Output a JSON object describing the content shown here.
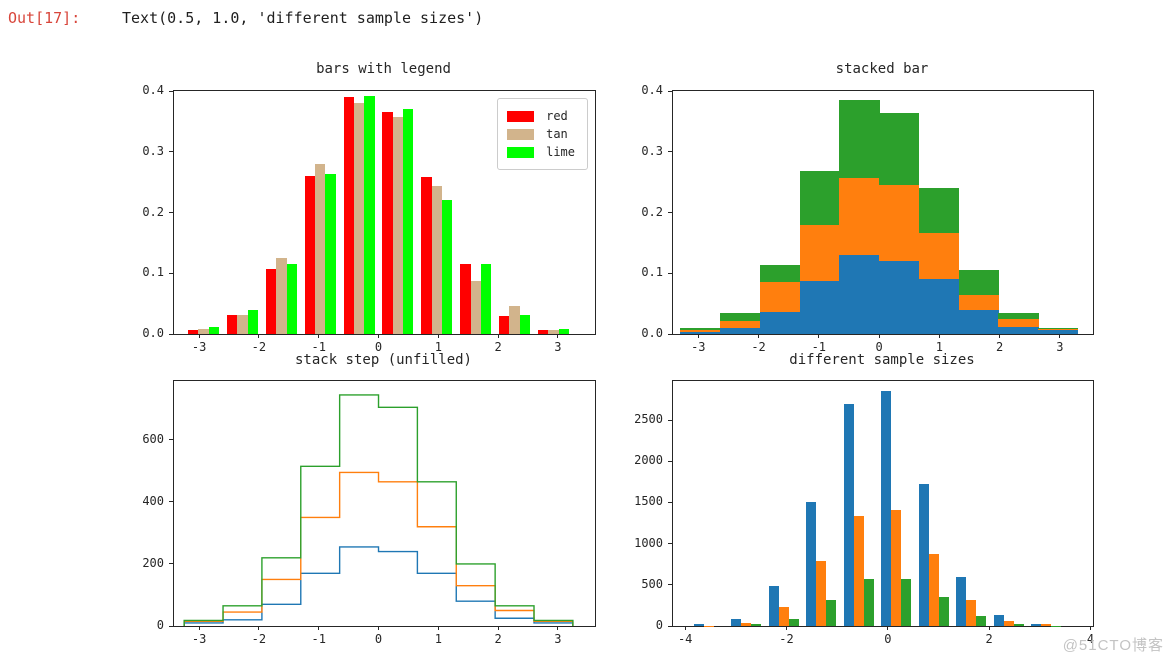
{
  "notebook": {
    "out_prompt": "Out[17]:",
    "out_value": "Text(0.5, 1.0, 'different sample sizes')"
  },
  "watermark": "@51CTO博客",
  "style": {
    "spine_color": "#262626",
    "tick_color": "#262626",
    "prompt_color": "#d8453a"
  },
  "chart_data": [
    {
      "type": "bar",
      "mode": "grouped",
      "title": "bars with legend",
      "legend": true,
      "legend_position": "upper right",
      "grid": false,
      "xlim": [
        -3.42,
        3.62
      ],
      "ylim": [
        0,
        0.4
      ],
      "bin_start": -3.25,
      "bin_width": 0.65,
      "group_fill": 0.8,
      "xticks": [
        {
          "value": -3,
          "label": "-3"
        },
        {
          "value": -2,
          "label": "-2"
        },
        {
          "value": -1,
          "label": "-1"
        },
        {
          "value": 0,
          "label": "0"
        },
        {
          "value": 1,
          "label": "1"
        },
        {
          "value": 2,
          "label": "2"
        },
        {
          "value": 3,
          "label": "3"
        }
      ],
      "yticks": [
        {
          "value": 0,
          "label": "0.0"
        },
        {
          "value": 0.1,
          "label": "0.1"
        },
        {
          "value": 0.2,
          "label": "0.2"
        },
        {
          "value": 0.3,
          "label": "0.3"
        },
        {
          "value": 0.4,
          "label": "0.4"
        }
      ],
      "series": [
        {
          "name": "red",
          "color": "#ff0000",
          "values": [
            0.007,
            0.032,
            0.107,
            0.26,
            0.39,
            0.365,
            0.258,
            0.115,
            0.03,
            0.007
          ]
        },
        {
          "name": "tan",
          "color": "#d2b48c",
          "values": [
            0.009,
            0.032,
            0.125,
            0.28,
            0.38,
            0.357,
            0.243,
            0.087,
            0.046,
            0.006
          ]
        },
        {
          "name": "lime",
          "color": "#00ff00",
          "values": [
            0.012,
            0.04,
            0.115,
            0.263,
            0.391,
            0.37,
            0.22,
            0.115,
            0.032,
            0.009
          ]
        }
      ]
    },
    {
      "type": "bar",
      "mode": "stacked",
      "title": "stacked bar",
      "legend": false,
      "grid": false,
      "xlim": [
        -3.42,
        3.55
      ],
      "ylim": [
        0,
        0.4
      ],
      "bin_start": -3.3,
      "bin_width": 0.66,
      "xticks": [
        {
          "value": -3,
          "label": "-3"
        },
        {
          "value": -2,
          "label": "-2"
        },
        {
          "value": -1,
          "label": "-1"
        },
        {
          "value": 0,
          "label": "0"
        },
        {
          "value": 1,
          "label": "1"
        },
        {
          "value": 2,
          "label": "2"
        },
        {
          "value": 3,
          "label": "3"
        }
      ],
      "yticks": [
        {
          "value": 0,
          "label": "0.0"
        },
        {
          "value": 0.1,
          "label": "0.1"
        },
        {
          "value": 0.2,
          "label": "0.2"
        },
        {
          "value": 0.3,
          "label": "0.3"
        },
        {
          "value": 0.4,
          "label": "0.4"
        }
      ],
      "series": [
        {
          "name": "blue",
          "color": "#1f77b4",
          "values": [
            0.004,
            0.01,
            0.037,
            0.088,
            0.13,
            0.12,
            0.09,
            0.04,
            0.012,
            0.007
          ]
        },
        {
          "name": "orange",
          "color": "#ff7f0e",
          "values": [
            0.003,
            0.012,
            0.048,
            0.092,
            0.127,
            0.125,
            0.077,
            0.025,
            0.013,
            0.001
          ]
        },
        {
          "name": "green",
          "color": "#2ca02c",
          "values": [
            0.003,
            0.013,
            0.028,
            0.088,
            0.128,
            0.118,
            0.073,
            0.04,
            0.01,
            0.002
          ]
        }
      ]
    },
    {
      "type": "step",
      "mode": "stacked-cumulative-outline",
      "title": "stack step (unfilled)",
      "legend": false,
      "grid": false,
      "xlim": [
        -3.42,
        3.62
      ],
      "ylim": [
        0,
        790
      ],
      "bin_start": -3.25,
      "bin_width": 0.65,
      "xticks": [
        {
          "value": -3,
          "label": "-3"
        },
        {
          "value": -2,
          "label": "-2"
        },
        {
          "value": -1,
          "label": "-1"
        },
        {
          "value": 0,
          "label": "0"
        },
        {
          "value": 1,
          "label": "1"
        },
        {
          "value": 2,
          "label": "2"
        },
        {
          "value": 3,
          "label": "3"
        }
      ],
      "yticks": [
        {
          "value": 0,
          "label": "0"
        },
        {
          "value": 200,
          "label": "200"
        },
        {
          "value": 400,
          "label": "400"
        },
        {
          "value": 600,
          "label": "600"
        }
      ],
      "series": [
        {
          "name": "blue",
          "color": "#1f77b4",
          "values": [
            10,
            20,
            70,
            170,
            255,
            240,
            170,
            80,
            25,
            10
          ]
        },
        {
          "name": "orange",
          "color": "#ff7f0e",
          "values": [
            15,
            45,
            150,
            350,
            495,
            465,
            320,
            130,
            50,
            15
          ]
        },
        {
          "name": "green",
          "color": "#2ca02c",
          "values": [
            18,
            65,
            220,
            515,
            745,
            705,
            465,
            200,
            65,
            18
          ]
        }
      ]
    },
    {
      "type": "bar",
      "mode": "grouped",
      "title": "different sample sizes",
      "legend": false,
      "grid": false,
      "xlim": [
        -4.24,
        4.05
      ],
      "ylim": [
        0,
        2975
      ],
      "bin_start": -3.9,
      "bin_width": 0.74,
      "group_fill": 0.8,
      "xticks": [
        {
          "value": -4,
          "label": "-4"
        },
        {
          "value": -2,
          "label": "-2"
        },
        {
          "value": 0,
          "label": "0"
        },
        {
          "value": 2,
          "label": "2"
        },
        {
          "value": 4,
          "label": "4"
        }
      ],
      "yticks": [
        {
          "value": 0,
          "label": "0"
        },
        {
          "value": 500,
          "label": "500"
        },
        {
          "value": 1000,
          "label": "1000"
        },
        {
          "value": 1500,
          "label": "1500"
        },
        {
          "value": 2000,
          "label": "2000"
        },
        {
          "value": 2500,
          "label": "2500"
        }
      ],
      "series": [
        {
          "name": "blue",
          "color": "#1f77b4",
          "values": [
            30,
            80,
            480,
            1510,
            2690,
            2850,
            1720,
            590,
            130,
            25
          ]
        },
        {
          "name": "orange",
          "color": "#ff7f0e",
          "values": [
            5,
            40,
            230,
            790,
            1330,
            1410,
            870,
            310,
            65,
            20
          ]
        },
        {
          "name": "green",
          "color": "#2ca02c",
          "values": [
            0,
            25,
            85,
            310,
            570,
            570,
            350,
            120,
            25,
            5
          ]
        }
      ]
    }
  ]
}
